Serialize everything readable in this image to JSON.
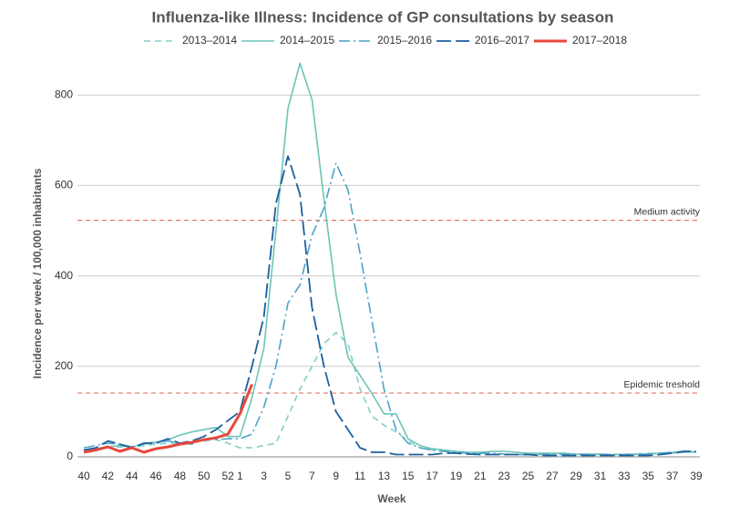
{
  "chart_data": {
    "type": "line",
    "title": "Influenza-like Illness: Incidence of GP consultations by season",
    "x_label": "Week",
    "y_label": "Incidence per week / 100,000 inhabitants",
    "categories": [
      "40",
      null,
      "42",
      null,
      "44",
      null,
      "46",
      null,
      "48",
      null,
      "50",
      null,
      "52",
      "1",
      null,
      "3",
      null,
      "5",
      null,
      "7",
      null,
      "9",
      null,
      "11",
      null,
      "13",
      null,
      "15",
      null,
      "17",
      null,
      "19",
      null,
      "21",
      null,
      "23",
      null,
      "25",
      null,
      "27",
      null,
      "29",
      null,
      "31",
      null,
      "33",
      null,
      "35",
      null,
      "37",
      null,
      "39"
    ],
    "ylim": [
      0,
      880
    ],
    "yticks": [
      0,
      200,
      400,
      600,
      800
    ],
    "grid": true,
    "thresholds": [
      {
        "label": "Medium activity",
        "value": 523,
        "color": "#e8776b"
      },
      {
        "label": "Epidemic treshold",
        "value": 141,
        "color": "#e8776b"
      }
    ],
    "series": [
      {
        "name": "2013–2014",
        "color": "#82cfc6",
        "dash": "dashed",
        "width": 1.6,
        "values": [
          15,
          18,
          20,
          22,
          20,
          25,
          28,
          30,
          30,
          32,
          35,
          38,
          30,
          20,
          20,
          25,
          30,
          90,
          150,
          200,
          250,
          275,
          250,
          150,
          90,
          70,
          55,
          35,
          20,
          15,
          12,
          10,
          8,
          8,
          6,
          5,
          5,
          5,
          6,
          5,
          5,
          5,
          5,
          5,
          5,
          6,
          6,
          8,
          8,
          10,
          10,
          10
        ]
      },
      {
        "name": "2014–2015",
        "color": "#6cc4b7",
        "dash": "solid",
        "width": 1.6,
        "values": [
          15,
          18,
          22,
          25,
          22,
          28,
          32,
          38,
          48,
          55,
          60,
          65,
          45,
          45,
          130,
          240,
          500,
          770,
          870,
          790,
          570,
          360,
          220,
          180,
          140,
          95,
          95,
          40,
          25,
          18,
          15,
          12,
          10,
          10,
          12,
          12,
          10,
          8,
          8,
          8,
          8,
          6,
          6,
          6,
          5,
          5,
          6,
          6,
          8,
          8,
          10,
          12
        ]
      },
      {
        "name": "2015–2016",
        "color": "#4aa3c8",
        "dash": "dashdot",
        "width": 1.6,
        "values": [
          20,
          25,
          30,
          28,
          22,
          30,
          32,
          35,
          30,
          28,
          40,
          38,
          40,
          40,
          50,
          110,
          200,
          340,
          380,
          490,
          550,
          650,
          590,
          450,
          300,
          150,
          60,
          30,
          20,
          15,
          12,
          10,
          8,
          8,
          8,
          6,
          5,
          5,
          5,
          6,
          6,
          5,
          5,
          5,
          5,
          5,
          5,
          6,
          8,
          10,
          12,
          10
        ]
      },
      {
        "name": "2016–2017",
        "color": "#1f5f9e",
        "dash": "longdash",
        "width": 1.8,
        "values": [
          15,
          20,
          35,
          28,
          20,
          30,
          30,
          40,
          30,
          35,
          45,
          60,
          80,
          100,
          200,
          310,
          560,
          665,
          580,
          330,
          200,
          100,
          60,
          20,
          10,
          10,
          5,
          5,
          5,
          5,
          8,
          8,
          6,
          5,
          5,
          5,
          5,
          5,
          3,
          3,
          3,
          3,
          3,
          3,
          3,
          3,
          3,
          3,
          5,
          8,
          12,
          12
        ]
      },
      {
        "name": "2017–2018",
        "color": "#e8483b",
        "dash": "solid",
        "width": 3,
        "values": [
          10,
          15,
          22,
          12,
          20,
          10,
          18,
          22,
          28,
          32,
          38,
          42,
          50,
          95,
          160,
          null,
          null,
          null,
          null,
          null,
          null,
          null,
          null,
          null,
          null,
          null,
          null,
          null,
          null,
          null,
          null,
          null,
          null,
          null,
          null,
          null,
          null,
          null,
          null,
          null,
          null,
          null,
          null,
          null,
          null,
          null,
          null,
          null,
          null,
          null,
          null,
          null
        ]
      }
    ]
  }
}
